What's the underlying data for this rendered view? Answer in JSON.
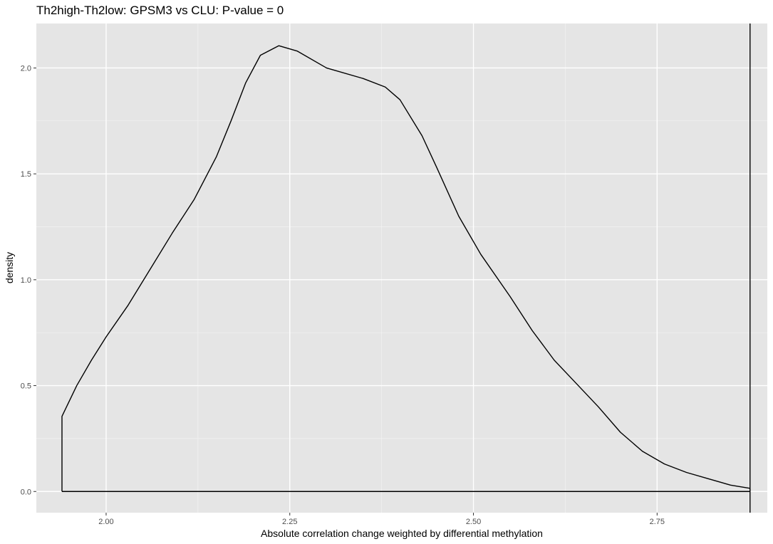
{
  "chart_data": {
    "type": "line",
    "title": "Th2high-Th2low: GPSM3 vs CLU: P-value = 0",
    "xlabel": "Absolute correlation change weighted by differential methylation",
    "ylabel": "density",
    "xlim": [
      1.905,
      2.9
    ],
    "ylim": [
      -0.1,
      2.21
    ],
    "x_major_ticks": [
      2.0,
      2.25,
      2.5,
      2.75
    ],
    "x_tick_labels": [
      "2.00",
      "2.25",
      "2.50",
      "2.75"
    ],
    "x_minor_ticks": [
      2.125,
      2.375,
      2.625,
      2.875
    ],
    "y_major_ticks": [
      0.0,
      0.5,
      1.0,
      1.5,
      2.0
    ],
    "y_tick_labels": [
      "0.0",
      "0.5",
      "1.0",
      "1.5",
      "2.0"
    ],
    "y_minor_ticks": [
      0.25,
      0.75,
      1.25,
      1.75
    ],
    "grid": true,
    "series": [
      {
        "values": [
          {
            "x": 1.9399,
            "y": 0.0
          },
          {
            "x": 1.9399,
            "y": 0.355
          },
          {
            "x": 1.96,
            "y": 0.5
          },
          {
            "x": 1.98,
            "y": 0.62
          },
          {
            "x": 2.0,
            "y": 0.73
          },
          {
            "x": 2.03,
            "y": 0.88
          },
          {
            "x": 2.06,
            "y": 1.05
          },
          {
            "x": 2.09,
            "y": 1.22
          },
          {
            "x": 2.12,
            "y": 1.38
          },
          {
            "x": 2.15,
            "y": 1.58
          },
          {
            "x": 2.17,
            "y": 1.75
          },
          {
            "x": 2.19,
            "y": 1.93
          },
          {
            "x": 2.21,
            "y": 2.06
          },
          {
            "x": 2.235,
            "y": 2.105
          },
          {
            "x": 2.26,
            "y": 2.08
          },
          {
            "x": 2.3,
            "y": 2.0
          },
          {
            "x": 2.35,
            "y": 1.95
          },
          {
            "x": 2.38,
            "y": 1.91
          },
          {
            "x": 2.4,
            "y": 1.85
          },
          {
            "x": 2.43,
            "y": 1.68
          },
          {
            "x": 2.45,
            "y": 1.53
          },
          {
            "x": 2.48,
            "y": 1.3
          },
          {
            "x": 2.51,
            "y": 1.12
          },
          {
            "x": 2.55,
            "y": 0.92
          },
          {
            "x": 2.58,
            "y": 0.76
          },
          {
            "x": 2.61,
            "y": 0.62
          },
          {
            "x": 2.64,
            "y": 0.51
          },
          {
            "x": 2.67,
            "y": 0.4
          },
          {
            "x": 2.7,
            "y": 0.28
          },
          {
            "x": 2.73,
            "y": 0.19
          },
          {
            "x": 2.76,
            "y": 0.13
          },
          {
            "x": 2.79,
            "y": 0.09
          },
          {
            "x": 2.82,
            "y": 0.06
          },
          {
            "x": 2.85,
            "y": 0.03
          },
          {
            "x": 2.8765,
            "y": 0.015
          },
          {
            "x": 2.8765,
            "y": 0.0
          },
          {
            "x": 1.9399,
            "y": 0.0
          }
        ]
      }
    ],
    "observed_value_line": 2.8765
  }
}
